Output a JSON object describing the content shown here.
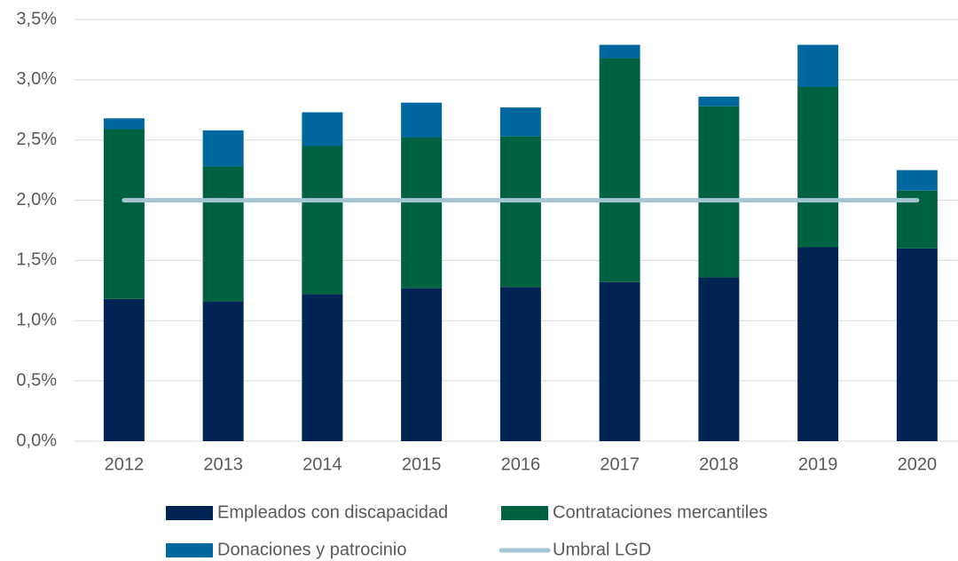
{
  "chart_data": {
    "type": "bar",
    "stacked": true,
    "categories": [
      "2012",
      "2013",
      "2014",
      "2015",
      "2016",
      "2017",
      "2018",
      "2019",
      "2020"
    ],
    "series": [
      {
        "name": "Empleados con discapacidad",
        "color": "#002554",
        "values": [
          1.18,
          1.16,
          1.22,
          1.27,
          1.28,
          1.32,
          1.36,
          1.61,
          1.6
        ]
      },
      {
        "name": "Contrataciones mercantiles",
        "color": "#006241",
        "values": [
          1.41,
          1.12,
          1.23,
          1.25,
          1.25,
          1.86,
          1.42,
          1.33,
          0.48
        ]
      },
      {
        "name": "Donaciones y patrocinio",
        "color": "#00689e",
        "values": [
          0.09,
          0.3,
          0.28,
          0.29,
          0.24,
          0.11,
          0.08,
          0.35,
          0.17
        ]
      },
      {
        "name": "Umbral LGD",
        "color": "#a6c5d3",
        "type": "line",
        "values": [
          2.0,
          2.0,
          2.0,
          2.0,
          2.0,
          2.0,
          2.0,
          2.0,
          2.0
        ]
      }
    ],
    "ylim": [
      0,
      3.5
    ],
    "yticks": [
      {
        "value": 0,
        "label": "0,0%"
      },
      {
        "value": 0.5,
        "label": "0,5%"
      },
      {
        "value": 1.0,
        "label": "1,0%"
      },
      {
        "value": 1.5,
        "label": "1,5%"
      },
      {
        "value": 2.0,
        "label": "2,0%"
      },
      {
        "value": 2.5,
        "label": "2,5%"
      },
      {
        "value": 3.0,
        "label": "3,0%"
      },
      {
        "value": 3.5,
        "label": "3,5%"
      }
    ],
    "grid": true,
    "legend": "bottom"
  }
}
